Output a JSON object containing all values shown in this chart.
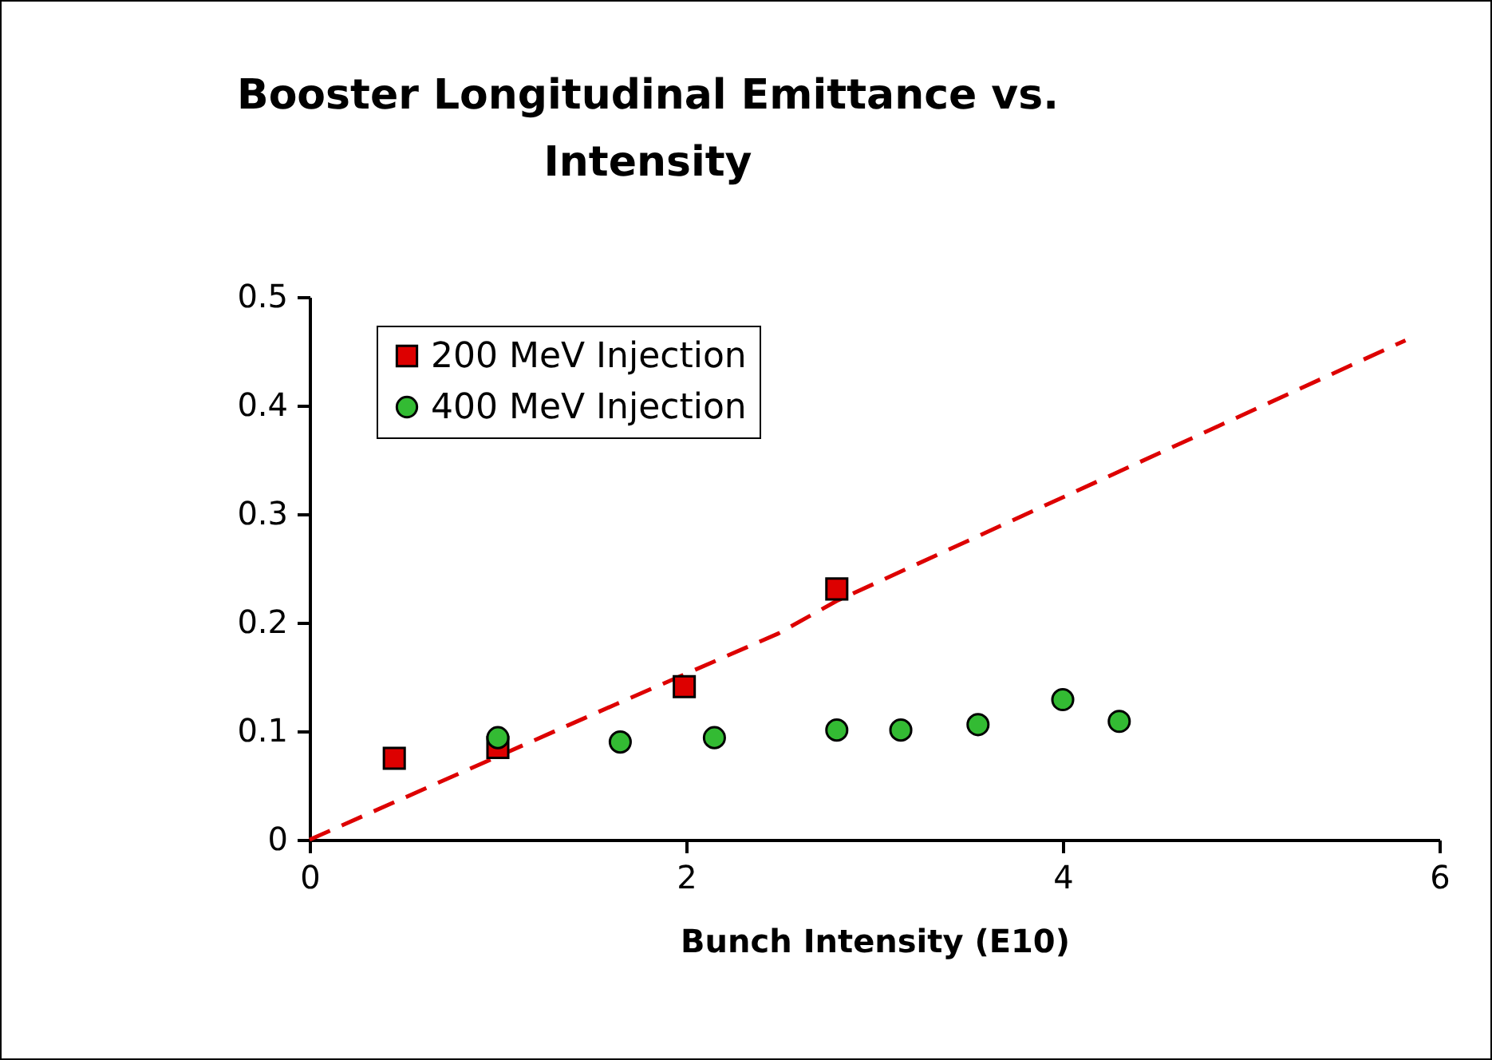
{
  "chart_data": {
    "type": "scatter",
    "title": "Booster Longitudinal Emittance vs. Intensity",
    "xlabel": "Bunch Intensity (E10)",
    "xlim": [
      0,
      6
    ],
    "xticks": [
      0,
      2,
      4,
      6
    ],
    "ylim": [
      0,
      0.5
    ],
    "yticks": [
      0,
      0.1,
      0.2,
      0.3,
      0.4,
      0.5
    ],
    "grid": false,
    "legend": "top left",
    "series": [
      {
        "type": "line",
        "color": "#dd0000",
        "line_style": "dashed",
        "x": [
          0,
          1.29,
          1.63,
          2.49,
          2.8,
          5.82
        ],
        "values": [
          0,
          0.099,
          0.125,
          0.19,
          0.22,
          0.46
        ]
      },
      {
        "name": "200 MeV Injection",
        "color": "#dd0000",
        "marker": "square",
        "x": [
          0.45,
          1.0,
          1.99,
          2.8
        ],
        "values": [
          0.075,
          0.085,
          0.141,
          0.231
        ]
      },
      {
        "name": "400 MeV Injection",
        "color": "#33bb33",
        "marker": "circle",
        "x": [
          1.0,
          1.65,
          2.15,
          2.8,
          3.14,
          3.55,
          4.0,
          4.3
        ],
        "values": [
          0.094,
          0.09,
          0.094,
          0.101,
          0.101,
          0.106,
          0.129,
          0.109
        ]
      }
    ]
  }
}
